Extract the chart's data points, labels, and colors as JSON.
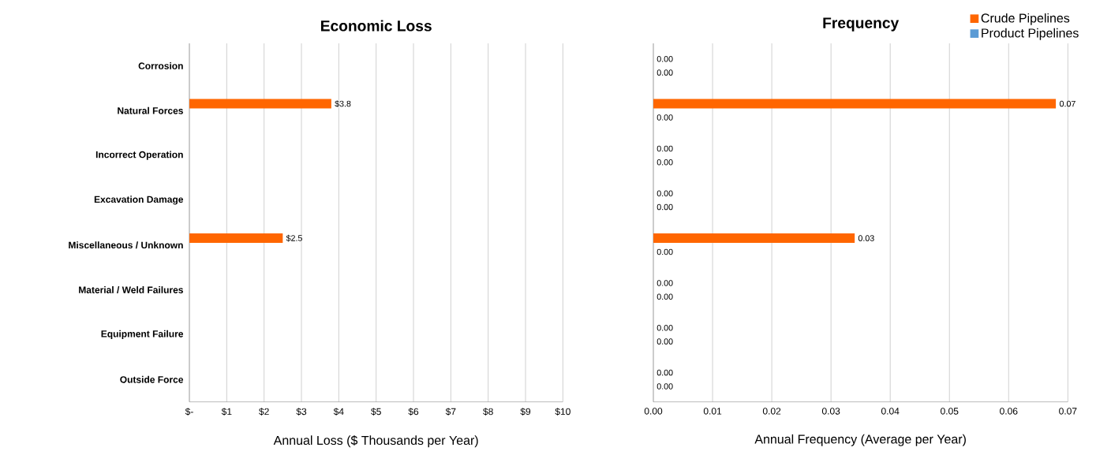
{
  "chart_data": [
    {
      "type": "bar",
      "orientation": "horizontal",
      "title": "Economic Loss",
      "xlabel": "Annual Loss ($ Thousands per Year)",
      "categories": [
        "Corrosion",
        "Natural Forces",
        "Incorrect Operation",
        "Excavation Damage",
        "Miscellaneous / Unknown",
        "Material / Weld Failures",
        "Equipment Failure",
        "Outside Force"
      ],
      "series": [
        {
          "color": "#ff6600",
          "values": [
            0,
            3.8,
            0,
            0,
            2.5,
            0,
            0,
            0
          ],
          "value_labels": [
            null,
            "$3.8",
            null,
            null,
            "$2.5",
            null,
            null,
            null
          ]
        },
        {
          "color": "#5b9bd5",
          "values": [
            0,
            0,
            0,
            0,
            0,
            0,
            0,
            0
          ]
        }
      ],
      "xlim": [
        0,
        10
      ],
      "xticks": [
        {
          "value": 0,
          "label": "$-"
        },
        {
          "value": 1,
          "label": "$1"
        },
        {
          "value": 2,
          "label": "$2"
        },
        {
          "value": 3,
          "label": "$3"
        },
        {
          "value": 4,
          "label": "$4"
        },
        {
          "value": 5,
          "label": "$5"
        },
        {
          "value": 6,
          "label": "$6"
        },
        {
          "value": 7,
          "label": "$7"
        },
        {
          "value": 8,
          "label": "$8"
        },
        {
          "value": 9,
          "label": "$9"
        },
        {
          "value": 10,
          "label": "$10"
        }
      ],
      "grid": "x"
    },
    {
      "type": "bar",
      "orientation": "horizontal",
      "title": "Frequency",
      "xlabel": "Annual Frequency (Average per Year)",
      "categories": [
        null,
        null,
        null,
        null,
        null,
        null,
        null,
        null
      ],
      "series": [
        {
          "name": "Crude Pipelines",
          "color": "#ff6600",
          "values": [
            0,
            0.068,
            0,
            0,
            0.034,
            0,
            0,
            0
          ],
          "value_labels": [
            "0.00",
            "0.07",
            "0.00",
            "0.00",
            "0.03",
            "0.00",
            "0.00",
            "0.00"
          ]
        },
        {
          "name": "Product Pipelines",
          "color": "#5b9bd5",
          "values": [
            0,
            0,
            0,
            0,
            0,
            0,
            0,
            0
          ],
          "value_labels": [
            "0.00",
            "0.00",
            "0.00",
            "0.00",
            "0.00",
            "0.00",
            "0.00",
            "0.00"
          ]
        }
      ],
      "xlim": [
        0,
        0.07
      ],
      "xticks": [
        {
          "value": 0,
          "label": "0.00"
        },
        {
          "value": 0.01,
          "label": "0.01"
        },
        {
          "value": 0.02,
          "label": "0.02"
        },
        {
          "value": 0.03,
          "label": "0.03"
        },
        {
          "value": 0.04,
          "label": "0.04"
        },
        {
          "value": 0.05,
          "label": "0.05"
        },
        {
          "value": 0.06,
          "label": "0.06"
        },
        {
          "value": 0.07,
          "label": "0.07"
        }
      ],
      "grid": "x",
      "legend": "top right"
    }
  ]
}
